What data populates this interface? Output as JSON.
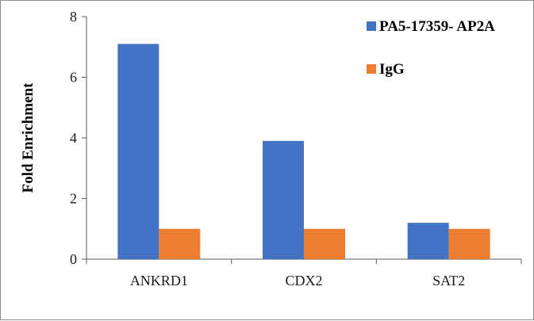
{
  "chart_data": {
    "type": "bar",
    "title": "",
    "xlabel": "",
    "ylabel": "Fold Enrichment",
    "ylim": [
      0,
      8
    ],
    "yticks": [
      0,
      2,
      4,
      6,
      8
    ],
    "grid": false,
    "legend_position": "top-right",
    "categories": [
      "ANKRD1",
      "CDX2",
      "SAT2"
    ],
    "series": [
      {
        "name": "PA5-17359- AP2A",
        "color": "#4472c4",
        "values": [
          7.1,
          3.9,
          1.2
        ]
      },
      {
        "name": "IgG",
        "color": "#ed7d31",
        "values": [
          1.0,
          1.0,
          1.0
        ]
      }
    ]
  }
}
